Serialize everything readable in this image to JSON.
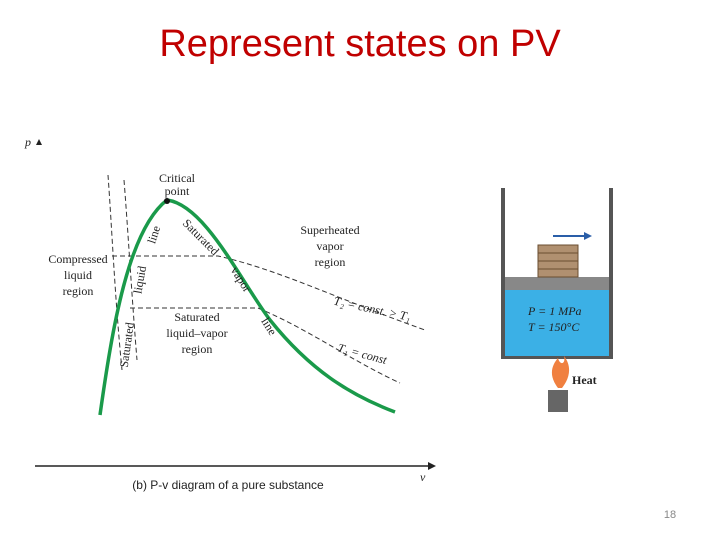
{
  "title": "Represent states on PV",
  "diagram": {
    "y_axis": "p",
    "x_axis": "v",
    "caption": "(b) P-v diagram of a pure substance",
    "critical_point": [
      "Critical",
      "point"
    ],
    "saturated_liquid_line": [
      "Saturated",
      "liquid",
      "line"
    ],
    "saturated_vapor_line": [
      "Saturated",
      "vapor",
      "line"
    ],
    "compressed_liquid_region": [
      "Compressed",
      "liquid",
      "region"
    ],
    "saturated_mixture_region": [
      "Saturated",
      "liquid–vapor",
      "region"
    ],
    "superheated_vapor_region": [
      "Superheated",
      "vapor",
      "region"
    ],
    "isotherm_t2": "T₂ = const. > T₁",
    "isotherm_t1": "T₁ = const"
  },
  "piston": {
    "pressure": "P = 1 MPa",
    "temperature": "T = 150°C",
    "heat": "Heat"
  },
  "page_number": "18"
}
